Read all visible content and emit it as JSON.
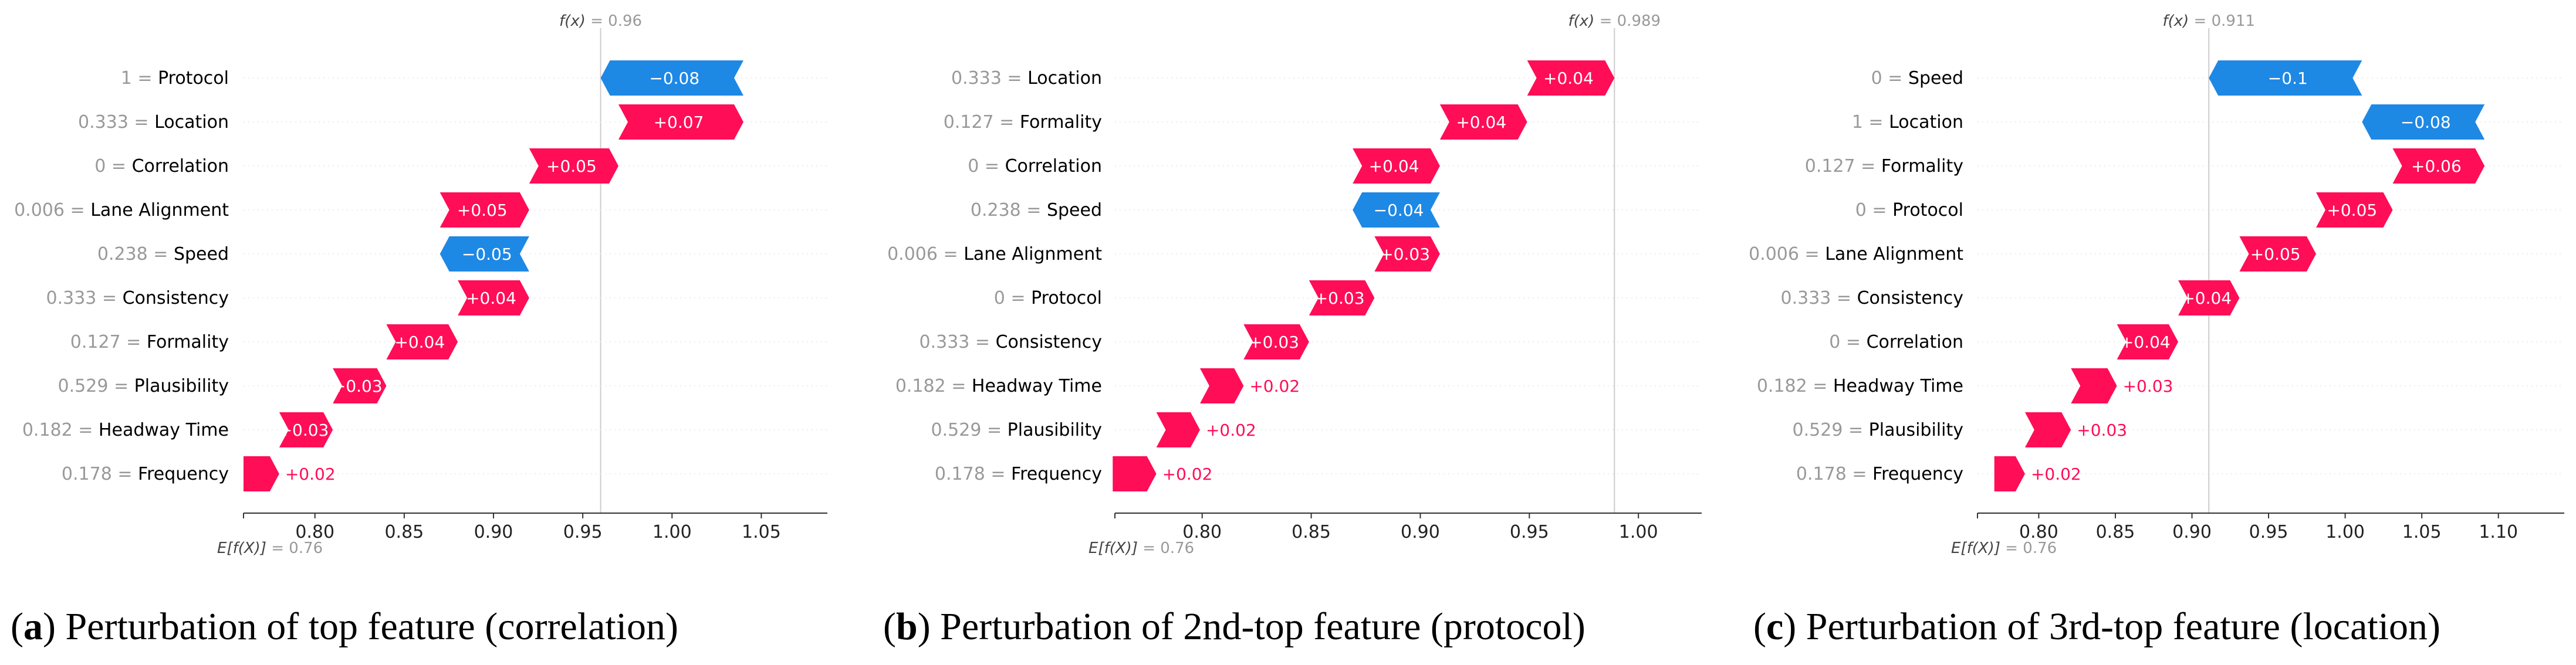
{
  "colors": {
    "positive": "#ff0d57",
    "negative": "#1e88e5",
    "axis": "#333333",
    "guide": "#cccccc",
    "name_text": "#000000",
    "value_text": "#999999"
  },
  "chart_data": [
    {
      "type": "waterfall",
      "caption_letter": "a",
      "caption_text": ") Perturbation of top feature (correlation)",
      "fx_label": "f(x)",
      "fx_value": "= 0.96",
      "efx_label": "E[f(X)]",
      "efx_value": "= 0.76",
      "base_value": 0.76,
      "output_value": 0.96,
      "xlim": [
        0.76,
        1.087
      ],
      "ticks": [
        0.8,
        0.85,
        0.9,
        0.95,
        1.0,
        1.05
      ],
      "tick_labels": [
        "0.80",
        "0.85",
        "0.90",
        "0.95",
        "1.00",
        "1.05"
      ],
      "features": [
        {
          "value": "1",
          "name": "Protocol",
          "shap": -0.08,
          "label": "−0.08"
        },
        {
          "value": "0.333",
          "name": "Location",
          "shap": 0.07,
          "label": "+0.07"
        },
        {
          "value": "0",
          "name": "Correlation",
          "shap": 0.05,
          "label": "+0.05"
        },
        {
          "value": "0.006",
          "name": "Lane Alignment",
          "shap": 0.05,
          "label": "+0.05"
        },
        {
          "value": "0.238",
          "name": "Speed",
          "shap": -0.05,
          "label": "−0.05"
        },
        {
          "value": "0.333",
          "name": "Consistency",
          "shap": 0.04,
          "label": "+0.04"
        },
        {
          "value": "0.127",
          "name": "Formality",
          "shap": 0.04,
          "label": "+0.04"
        },
        {
          "value": "0.529",
          "name": "Plausibility",
          "shap": 0.03,
          "label": "+0.03"
        },
        {
          "value": "0.182",
          "name": "Headway Time",
          "shap": 0.03,
          "label": "+0.03"
        },
        {
          "value": "0.178",
          "name": "Frequency",
          "shap": 0.02,
          "label": "+0.02"
        }
      ]
    },
    {
      "type": "waterfall",
      "caption_letter": "b",
      "caption_text": ") Perturbation of 2nd-top feature (protocol)",
      "fx_label": "f(x)",
      "fx_value": "= 0.989",
      "efx_label": "E[f(X)]",
      "efx_value": "= 0.76",
      "base_value": 0.76,
      "output_value": 0.989,
      "xlim": [
        0.76,
        1.029
      ],
      "ticks": [
        0.8,
        0.85,
        0.9,
        0.95,
        1.0
      ],
      "tick_labels": [
        "0.80",
        "0.85",
        "0.90",
        "0.95",
        "1.00"
      ],
      "features": [
        {
          "value": "0.333",
          "name": "Location",
          "shap": 0.04,
          "label": "+0.04"
        },
        {
          "value": "0.127",
          "name": "Formality",
          "shap": 0.04,
          "label": "+0.04"
        },
        {
          "value": "0",
          "name": "Correlation",
          "shap": 0.04,
          "label": "+0.04"
        },
        {
          "value": "0.238",
          "name": "Speed",
          "shap": -0.04,
          "label": "−0.04"
        },
        {
          "value": "0.006",
          "name": "Lane Alignment",
          "shap": 0.03,
          "label": "+0.03"
        },
        {
          "value": "0",
          "name": "Protocol",
          "shap": 0.03,
          "label": "+0.03"
        },
        {
          "value": "0.333",
          "name": "Consistency",
          "shap": 0.03,
          "label": "+0.03"
        },
        {
          "value": "0.182",
          "name": "Headway Time",
          "shap": 0.02,
          "label": "+0.02"
        },
        {
          "value": "0.529",
          "name": "Plausibility",
          "shap": 0.02,
          "label": "+0.02"
        },
        {
          "value": "0.178",
          "name": "Frequency",
          "shap": 0.02,
          "label": "+0.02"
        }
      ]
    },
    {
      "type": "waterfall",
      "caption_letter": "c",
      "caption_text": ") Perturbation of 3rd-top feature (location)",
      "fx_label": "f(x)",
      "fx_value": "= 0.911",
      "efx_label": "E[f(X)]",
      "efx_value": "= 0.76",
      "base_value": 0.76,
      "output_value": 0.911,
      "xlim": [
        0.76,
        1.143
      ],
      "ticks": [
        0.8,
        0.85,
        0.9,
        0.95,
        1.0,
        1.05,
        1.1
      ],
      "tick_labels": [
        "0.80",
        "0.85",
        "0.90",
        "0.95",
        "1.00",
        "1.05",
        "1.10"
      ],
      "features": [
        {
          "value": "0",
          "name": "Speed",
          "shap": -0.1,
          "label": "−0.1"
        },
        {
          "value": "1",
          "name": "Location",
          "shap": -0.08,
          "label": "−0.08"
        },
        {
          "value": "0.127",
          "name": "Formality",
          "shap": 0.06,
          "label": "+0.06"
        },
        {
          "value": "0",
          "name": "Protocol",
          "shap": 0.05,
          "label": "+0.05"
        },
        {
          "value": "0.006",
          "name": "Lane Alignment",
          "shap": 0.05,
          "label": "+0.05"
        },
        {
          "value": "0.333",
          "name": "Consistency",
          "shap": 0.04,
          "label": "+0.04"
        },
        {
          "value": "0",
          "name": "Correlation",
          "shap": 0.04,
          "label": "+0.04"
        },
        {
          "value": "0.182",
          "name": "Headway Time",
          "shap": 0.03,
          "label": "+0.03"
        },
        {
          "value": "0.529",
          "name": "Plausibility",
          "shap": 0.03,
          "label": "+0.03"
        },
        {
          "value": "0.178",
          "name": "Frequency",
          "shap": 0.02,
          "label": "+0.02"
        }
      ]
    }
  ]
}
